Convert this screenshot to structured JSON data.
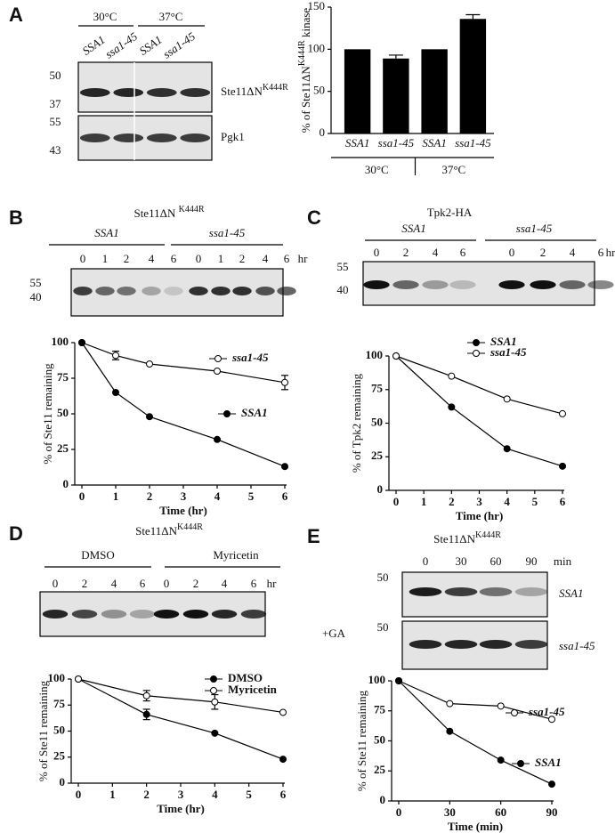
{
  "chart_data": [
    {
      "panel": "A",
      "type": "bar",
      "ylabel": {
        "text": "% of Ste11ΔN",
        "sup": "K444R",
        "after": " kinase"
      },
      "categories": [
        "SSA1",
        "ssa1-45",
        "SSA1",
        "ssa1-45"
      ],
      "values": [
        100,
        89,
        100,
        136
      ],
      "errors": [
        0,
        4,
        0,
        5
      ],
      "color": "#000000",
      "groups": [
        "30°C",
        "37°C"
      ],
      "ylim": [
        0,
        150
      ],
      "yticks": [
        0,
        50,
        100,
        150
      ]
    },
    {
      "panel": "B",
      "type": "line",
      "xlabel": "Time (hr)",
      "ylabel": "% of Ste11 remaining",
      "x": [
        0,
        1,
        2,
        4,
        6
      ],
      "xlim": [
        0,
        6
      ],
      "xticks": [
        0,
        1,
        2,
        3,
        4,
        5,
        6
      ],
      "ylim": [
        0,
        100
      ],
      "yticks": [
        0,
        25,
        50,
        75,
        100
      ],
      "series": [
        {
          "name": "ssa1-45",
          "marker": "open",
          "values": [
            100,
            91,
            85,
            80,
            72
          ],
          "errors": [
            0,
            3,
            0,
            0,
            5
          ]
        },
        {
          "name": "SSA1",
          "marker": "filled",
          "values": [
            100,
            65,
            48,
            32,
            13
          ]
        }
      ]
    },
    {
      "panel": "C",
      "type": "line",
      "xlabel": "Time (hr)",
      "ylabel": "% of Tpk2 remaining",
      "x": [
        0,
        2,
        4,
        6
      ],
      "xlim": [
        0,
        6
      ],
      "xticks": [
        0,
        1,
        2,
        3,
        4,
        5,
        6
      ],
      "ylim": [
        0,
        100
      ],
      "yticks": [
        0,
        25,
        50,
        75,
        100
      ],
      "series": [
        {
          "name": "SSA1",
          "marker": "filled",
          "values": [
            100,
            62,
            31,
            18
          ]
        },
        {
          "name": "ssa1-45",
          "marker": "open",
          "values": [
            100,
            85,
            68,
            57
          ]
        }
      ]
    },
    {
      "panel": "D",
      "type": "line",
      "xlabel": "Time (hr)",
      "ylabel": "% of Ste11 remaining",
      "x": [
        0,
        2,
        4,
        6
      ],
      "xlim": [
        0,
        6
      ],
      "xticks": [
        0,
        1,
        2,
        3,
        4,
        5,
        6
      ],
      "ylim": [
        0,
        100
      ],
      "yticks": [
        0,
        25,
        50,
        75,
        100
      ],
      "series": [
        {
          "name": "DMSO",
          "marker": "filled",
          "values": [
            100,
            66,
            48,
            23
          ],
          "errors": [
            0,
            5,
            0,
            0
          ]
        },
        {
          "name": "Myricetin",
          "marker": "open",
          "values": [
            100,
            84,
            78,
            68
          ],
          "errors": [
            0,
            5,
            7,
            0
          ]
        }
      ]
    },
    {
      "panel": "E",
      "type": "line",
      "xlabel": "Time (min)",
      "ylabel": "% of Ste11 remaining",
      "x": [
        0,
        30,
        60,
        90
      ],
      "xlim": [
        0,
        90
      ],
      "xticks": [
        0,
        30,
        60,
        90
      ],
      "ylim": [
        0,
        100
      ],
      "yticks": [
        0,
        25,
        50,
        75,
        100
      ],
      "series": [
        {
          "name": "ssa1-45",
          "marker": "open",
          "values": [
            100,
            81,
            79,
            68
          ]
        },
        {
          "name": "SSA1",
          "marker": "filled",
          "values": [
            100,
            58,
            34,
            14
          ]
        }
      ]
    }
  ],
  "blots": [
    {
      "groups": [
        "30°C",
        "37°C"
      ],
      "lanes": [
        "SSA1",
        "ssa1-45",
        "SSA1",
        "ssa1-45"
      ],
      "markers": [
        "50",
        "37",
        "55",
        "43"
      ],
      "rows": [
        {
          "text": "Ste11ΔN",
          "sup": "K444R"
        },
        {
          "text": "Pgk1"
        }
      ]
    },
    {
      "title": {
        "text": "Ste11ΔN ",
        "sup": "K444R"
      },
      "groups": [
        "SSA1",
        "ssa1-45"
      ],
      "lanes": [
        "0",
        "1",
        "2",
        "4",
        "6",
        "0",
        "1",
        "2",
        "4",
        "6"
      ],
      "unit": "hr",
      "markers": [
        "55",
        "40"
      ]
    },
    {
      "title": {
        "text": "Tpk2-HA"
      },
      "groups": [
        "SSA1",
        "ssa1-45"
      ],
      "lanes": [
        "0",
        "2",
        "4",
        "6",
        "0",
        "2",
        "4",
        "6"
      ],
      "unit": "hr",
      "markers": [
        "55",
        "40"
      ]
    },
    {
      "title": {
        "text": "Ste11ΔN",
        "sup": "K444R"
      },
      "groups": [
        "DMSO",
        "Myricetin"
      ],
      "lanes": [
        "0",
        "2",
        "4",
        "6",
        "0",
        "2",
        "4",
        "6"
      ],
      "unit": "hr"
    },
    {
      "title": {
        "text": "Ste11ΔN",
        "sup": "K444R"
      },
      "lanes": [
        "0",
        "30",
        "60",
        "90"
      ],
      "unit": "min",
      "markers": [
        "50",
        "50"
      ],
      "treatment": "+GA",
      "rows": [
        {
          "text": "SSA1"
        },
        {
          "text": "ssa1-45"
        }
      ]
    }
  ]
}
